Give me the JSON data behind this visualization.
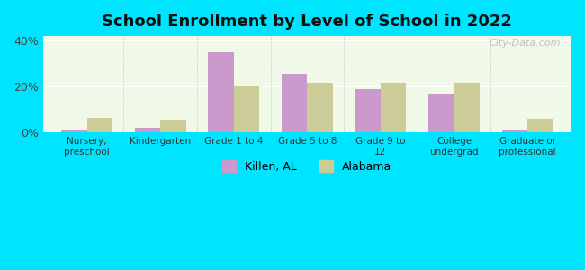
{
  "title": "School Enrollment by Level of School in 2022",
  "categories": [
    "Nursery,\npreschool",
    "Kindergarten",
    "Grade 1 to 4",
    "Grade 5 to 8",
    "Grade 9 to\n12",
    "College\nundergrad",
    "Graduate or\nprofessional"
  ],
  "killen_values": [
    1.0,
    2.0,
    35.0,
    25.5,
    19.0,
    16.5,
    1.0
  ],
  "alabama_values": [
    6.5,
    5.5,
    20.0,
    21.5,
    21.5,
    21.5,
    6.0
  ],
  "killen_color": "#cc99cc",
  "alabama_color": "#cccc99",
  "background_outer": "#00e5ff",
  "background_inner": "#f0f8e8",
  "ylim": [
    0,
    42
  ],
  "yticks": [
    0,
    20,
    40
  ],
  "ytick_labels": [
    "0%",
    "20%",
    "40%"
  ],
  "bar_width": 0.35,
  "legend_killen": "Killen, AL",
  "legend_alabama": "Alabama",
  "watermark": "City-Data.com"
}
